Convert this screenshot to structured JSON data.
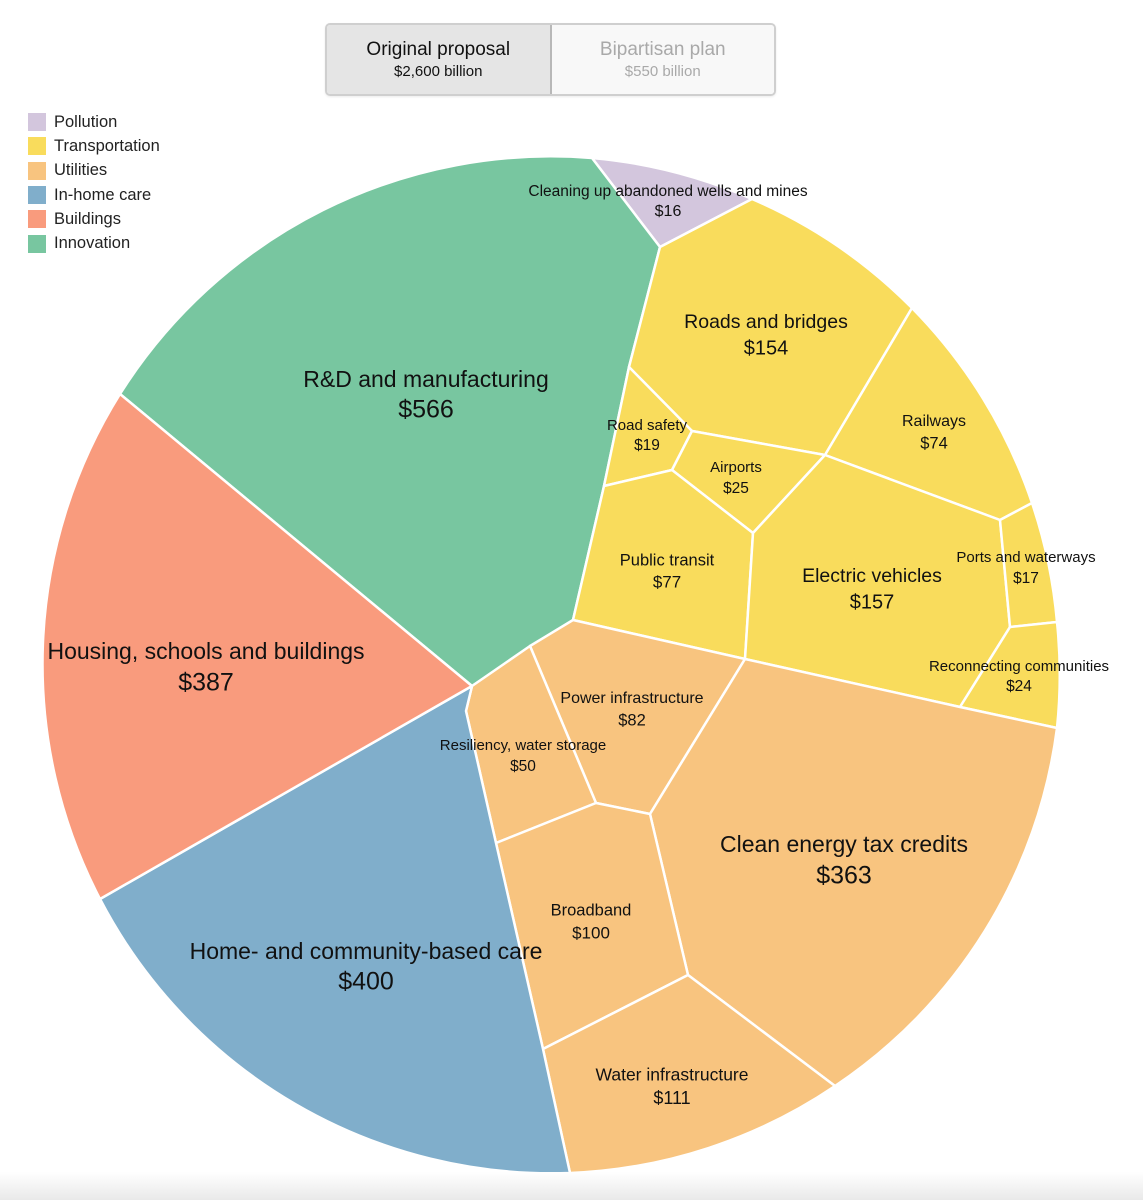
{
  "toggle": {
    "options": [
      {
        "label": "Original proposal",
        "sub": "$2,600 billion"
      },
      {
        "label": "Bipartisan plan",
        "sub": "$550 billion"
      }
    ],
    "active": "Original proposal"
  },
  "legend": [
    {
      "label": "Pollution",
      "color": "#d3c6dd"
    },
    {
      "label": "Transportation",
      "color": "#f9dc5c"
    },
    {
      "label": "Utilities",
      "color": "#f8c47f"
    },
    {
      "label": "In-home care",
      "color": "#80aecb"
    },
    {
      "label": "Buildings",
      "color": "#f99b7d"
    },
    {
      "label": "Innovation",
      "color": "#78c6a0"
    }
  ],
  "chart_data": {
    "type": "voronoi-treemap",
    "units": "billion USD",
    "cells": [
      {
        "label": "R&D and manufacturing",
        "value_label": "$566",
        "value": 566,
        "category": "Innovation"
      },
      {
        "label": "Housing, schools and buildings",
        "value_label": "$387",
        "value": 387,
        "category": "Buildings"
      },
      {
        "label": "Home- and community-based care",
        "value_label": "$400",
        "value": 400,
        "category": "In-home care"
      },
      {
        "label": "Cleaning up abandoned wells and mines",
        "value_label": "$16",
        "value": 16,
        "category": "Pollution"
      },
      {
        "label": "Roads and bridges",
        "value_label": "$154",
        "value": 154,
        "category": "Transportation"
      },
      {
        "label": "Railways",
        "value_label": "$74",
        "value": 74,
        "category": "Transportation"
      },
      {
        "label": "Road safety",
        "value_label": "$19",
        "value": 19,
        "category": "Transportation"
      },
      {
        "label": "Airports",
        "value_label": "$25",
        "value": 25,
        "category": "Transportation"
      },
      {
        "label": "Public transit",
        "value_label": "$77",
        "value": 77,
        "category": "Transportation"
      },
      {
        "label": "Electric vehicles",
        "value_label": "$157",
        "value": 157,
        "category": "Transportation"
      },
      {
        "label": "Ports and waterways",
        "value_label": "$17",
        "value": 17,
        "category": "Transportation"
      },
      {
        "label": "Reconnecting communities",
        "value_label": "$24",
        "value": 24,
        "category": "Transportation"
      },
      {
        "label": "Power infrastructure",
        "value_label": "$82",
        "value": 82,
        "category": "Utilities"
      },
      {
        "label": "Resiliency, water storage",
        "value_label": "$50",
        "value": 50,
        "category": "Utilities"
      },
      {
        "label": "Clean energy tax credits",
        "value_label": "$363",
        "value": 363,
        "category": "Utilities"
      },
      {
        "label": "Broadband",
        "value_label": "$100",
        "value": 100,
        "category": "Utilities"
      },
      {
        "label": "Water infrastructure",
        "value_label": "$111",
        "value": 111,
        "category": "Utilities"
      }
    ]
  }
}
